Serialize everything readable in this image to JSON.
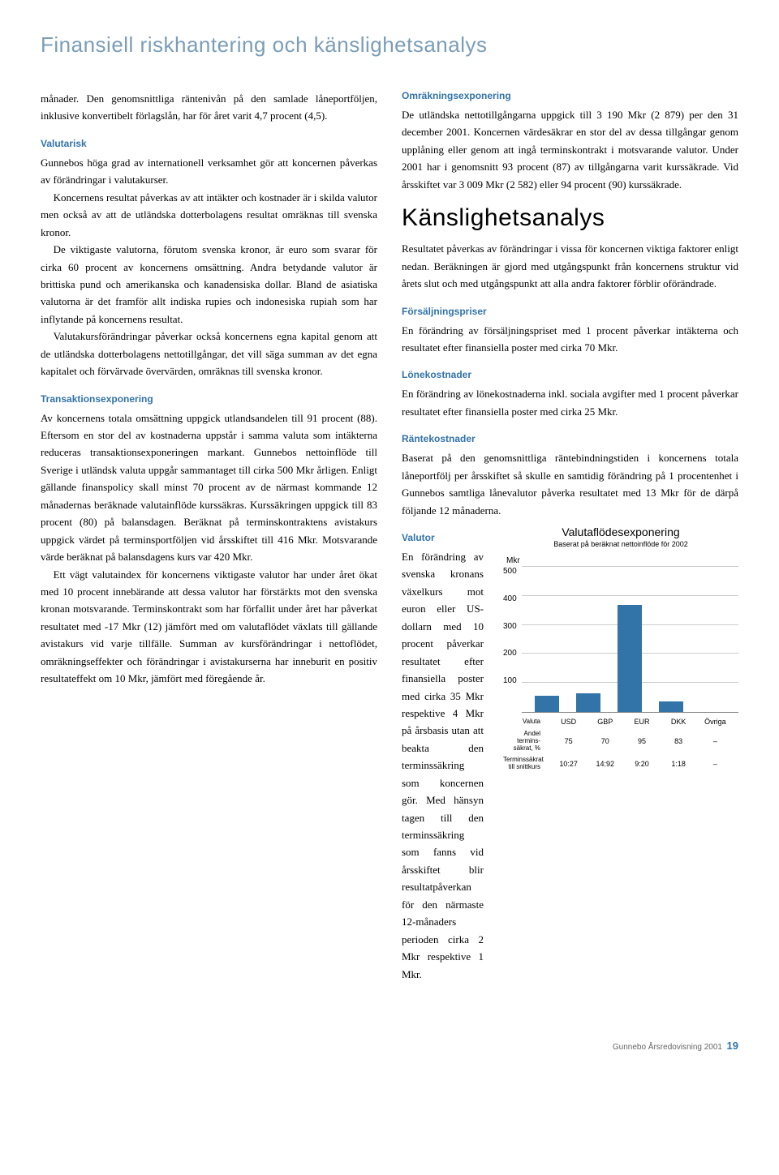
{
  "page_title": "Finansiell riskhantering och känslighetsanalys",
  "left": {
    "p1": "månader. Den genomsnittliga räntenivån på den samlade låneportföljen, inklusive konvertibelt förlagslån, har för året varit 4,7 procent (4,5).",
    "h_valutarisk": "Valutarisk",
    "p2": "Gunnebos höga grad av internationell verksamhet gör att koncernen påverkas av förändringar i valutakurser.",
    "p3": "Koncernens resultat påverkas av att intäkter och kostnader är i skilda valutor men också av att de utländska dotterbolagens resultat omräknas till svenska kronor.",
    "p4": "De viktigaste valutorna, förutom svenska kronor, är euro som svarar för cirka 60 procent av koncernens omsättning. Andra betydande valutor är brittiska pund och amerikanska och kanadensiska dollar. Bland de asiatiska valutorna är det framför allt indiska rupies och indonesiska rupiah som har inflytande på koncernens resultat.",
    "p5": "Valutakursförändringar påverkar också koncernens egna kapital genom att de utländska dotterbolagens nettotillgångar, det vill säga summan av det egna kapitalet och förvärvade övervärden, omräknas till svenska kronor.",
    "h_trans": "Transaktionsexponering",
    "p6": "Av koncernens totala omsättning uppgick utlandsandelen till 91 procent (88). Eftersom en stor del av kostnaderna uppstår i samma valuta som intäkterna reduceras transaktionsexponeringen markant. Gunnebos nettoinflöde till Sverige i utländsk valuta uppgår sammantaget till cirka 500 Mkr årligen. Enligt gällande finanspolicy skall minst 70 procent av de närmast kommande 12 månadernas beräknade valutainflöde kurssäkras. Kurssäkringen uppgick till 83 procent (80) på balansdagen. Beräknat på terminskontraktens avistakurs uppgick värdet på terminsportföljen vid årsskiftet till 416 Mkr. Motsvarande värde beräknat på balansdagens kurs var 420 Mkr.",
    "p7": "Ett vägt valutaindex för koncernens viktigaste valutor har under året ökat med 10 procent innebärande att dessa valutor har förstärkts mot den svenska kronan motsvarande. Terminskontrakt som har förfallit under året har påverkat resultatet med -17 Mkr (12) jämfört med om valutaflödet växlats till gällande avistakurs vid varje tillfälle. Summan av kursförändringar i nettoflödet, omräkningseffekter och förändringar i avistakurserna har inneburit en positiv resultateffekt om 10 Mkr, jämfört med föregående år."
  },
  "right": {
    "h_omrak": "Omräkningsexponering",
    "p1": "De utländska nettotillgångarna uppgick till 3 190 Mkr (2 879) per den 31 december 2001. Koncernen värdesäkrar en stor del av dessa tillgångar genom upplåning eller genom att ingå terminskontrakt i motsvarande valutor. Under 2001 har i genomsnitt 93 procent (87) av tillgångarna varit kurssäkrade. Vid årsskiftet var 3 009 Mkr (2 582) eller 94 procent (90) kurssäkrade.",
    "h_kansl": "Känslighetsanalys",
    "p2": "Resultatet påverkas av förändringar i vissa för koncernen viktiga faktorer enligt nedan. Beräkningen är gjord med utgångspunkt från koncernens struktur vid årets slut och med utgångspunkt att alla andra faktorer förblir oförändrade.",
    "h_forsalj": "Försäljningspriser",
    "p3": "En förändring av försäljningspriset med 1 procent påverkar intäkterna och resultatet efter finansiella poster med cirka 70 Mkr.",
    "h_lone": "Lönekostnader",
    "p4": "En förändring av lönekostnaderna inkl. sociala avgifter med 1 procent påverkar resultatet efter finansiella poster med cirka 25 Mkr.",
    "h_rante": "Räntekostnader",
    "p5": "Baserat på den genomsnittliga räntebindningstiden i koncernens totala låneportfölj per årsskiftet så skulle en samtidig förändring på 1 procentenhet i Gunnebos samtliga lånevalutor påverka resultatet med 13 Mkr för de därpå följande 12 månaderna.",
    "h_valutor": "Valutor",
    "p6": "En förändring av svenska kronans växelkurs mot euron eller US-dollarn med 10 procent påverkar resultatet efter finansiella poster med cirka 35 Mkr respektive 4 Mkr på årsbasis utan att beakta den terminssäkring som koncernen gör. Med hänsyn tagen till den terminssäkring som fanns vid årsskiftet blir resultatpåverkan för den närmaste 12-månaders perioden cirka 2 Mkr respektive 1 Mkr."
  },
  "chart": {
    "title": "Valutaflödesexponering",
    "subtitle": "Baserat på beräknat nettoinflöde för 2002",
    "y_label": "Mkr",
    "y_ticks": [
      "500",
      "400",
      "300",
      "200",
      "100"
    ],
    "ymax": 500,
    "bar_color": "#3273a8",
    "grid_color": "#cccccc",
    "categories": [
      "USD",
      "GBP",
      "EUR",
      "DKK",
      "Övriga"
    ],
    "values": [
      55,
      65,
      370,
      35,
      0
    ],
    "row_valuta_label": "Valuta",
    "row_andel_label": "Andel termins-\nsäkrat, %",
    "row_andel": [
      "75",
      "70",
      "95",
      "83",
      "–"
    ],
    "row_termins_label": "Terminssäkrat\ntill snittkurs",
    "row_termins": [
      "10:27",
      "14:92",
      "9:20",
      "1:18",
      "–"
    ]
  },
  "footer": {
    "text": "Gunnebo Årsredovisning 2001",
    "page": "19"
  }
}
